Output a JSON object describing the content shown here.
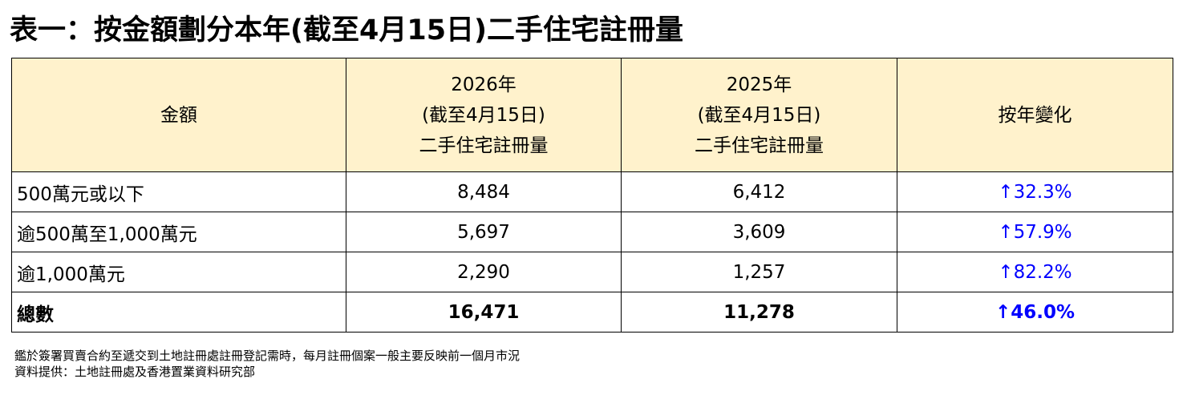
{
  "title": "表一：按金額劃分本年(截至4月15日)二手住宅註冊量",
  "colors": {
    "header_fill": "#fff2cc",
    "border": "#000000",
    "change_text": "#0000ff"
  },
  "chart_data": {
    "type": "table",
    "title": "表一：按金額劃分本年(截至4月15日)二手住宅註冊量",
    "columns": [
      {
        "lines": [
          "金額"
        ]
      },
      {
        "lines": [
          "2026年",
          "(截至4月15日)",
          "二手住宅註冊量"
        ]
      },
      {
        "lines": [
          "2025年",
          "(截至4月15日)",
          "二手住宅註冊量"
        ]
      },
      {
        "lines": [
          "按年變化"
        ]
      }
    ],
    "rows": [
      {
        "label": "500萬元或以下",
        "y2026": "8,484",
        "y2025": "6,412",
        "change": "↑32.3%",
        "is_total": false
      },
      {
        "label": "逾500萬至1,000萬元",
        "y2026": "5,697",
        "y2025": "3,609",
        "change": "↑57.9%",
        "is_total": false
      },
      {
        "label": "逾1,000萬元",
        "y2026": "2,290",
        "y2025": "1,257",
        "change": "↑82.2%",
        "is_total": false
      },
      {
        "label": "總數",
        "y2026": "16,471",
        "y2025": "11,278",
        "change": "↑46.0%",
        "is_total": true
      }
    ]
  },
  "notes": {
    "line1": "鑑於簽署買賣合約至遞交到土地註冊處註冊登記需時，每月註冊個案一般主要反映前一個月市況",
    "line2": "資料提供：土地註冊處及香港置業資料研究部"
  }
}
